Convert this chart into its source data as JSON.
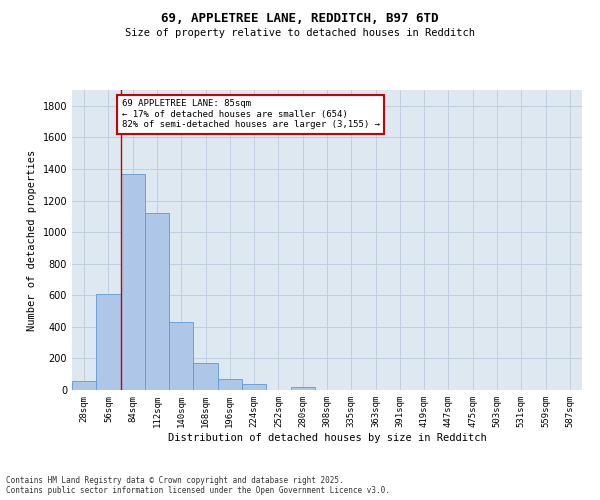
{
  "title_line1": "69, APPLETREE LANE, REDDITCH, B97 6TD",
  "title_line2": "Size of property relative to detached houses in Redditch",
  "xlabel": "Distribution of detached houses by size in Redditch",
  "ylabel": "Number of detached properties",
  "bar_labels": [
    "28sqm",
    "56sqm",
    "84sqm",
    "112sqm",
    "140sqm",
    "168sqm",
    "196sqm",
    "224sqm",
    "252sqm",
    "280sqm",
    "308sqm",
    "335sqm",
    "363sqm",
    "391sqm",
    "419sqm",
    "447sqm",
    "475sqm",
    "503sqm",
    "531sqm",
    "559sqm",
    "587sqm"
  ],
  "bar_values": [
    60,
    605,
    1365,
    1120,
    430,
    170,
    70,
    35,
    0,
    20,
    0,
    0,
    0,
    0,
    0,
    0,
    0,
    0,
    0,
    0,
    0
  ],
  "bar_color": "#aec6e8",
  "bar_edge_color": "#5b9bd5",
  "vline_x": 1.5,
  "vline_color": "#cc0000",
  "annotation_text": "69 APPLETREE LANE: 85sqm\n← 17% of detached houses are smaller (654)\n82% of semi-detached houses are larger (3,155) →",
  "annotation_box_color": "#ffffff",
  "annotation_border_color": "#cc0000",
  "ylim": [
    0,
    1900
  ],
  "yticks": [
    0,
    200,
    400,
    600,
    800,
    1000,
    1200,
    1400,
    1600,
    1800
  ],
  "grid_color": "#c0cfdf",
  "bg_color": "#dde8f0",
  "footer_line1": "Contains HM Land Registry data © Crown copyright and database right 2025.",
  "footer_line2": "Contains public sector information licensed under the Open Government Licence v3.0."
}
